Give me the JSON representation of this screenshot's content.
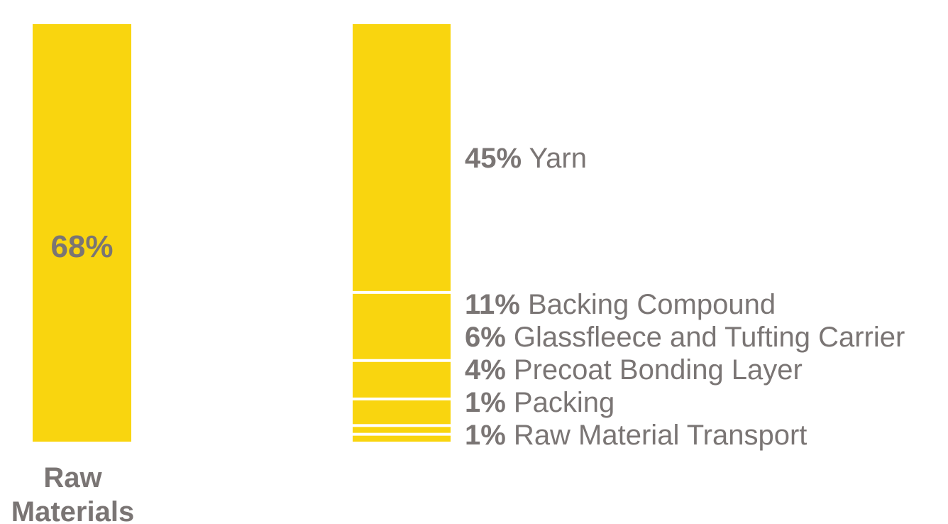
{
  "chart_data": {
    "type": "bar",
    "total": {
      "label": "Raw Materials",
      "label_lines": [
        "Raw",
        "Materials"
      ],
      "value": 68,
      "value_label": "68%"
    },
    "breakdown": [
      {
        "value": 45,
        "value_label": "45%",
        "name": "Yarn"
      },
      {
        "value": 11,
        "value_label": "11%",
        "name": "Backing Compound"
      },
      {
        "value": 6,
        "value_label": "6%",
        "name": "Glassfleece and Tufting Carrier"
      },
      {
        "value": 4,
        "value_label": "4%",
        "name": "Precoat Bonding Layer"
      },
      {
        "value": 1,
        "value_label": "1%",
        "name": "Packing"
      },
      {
        "value": 1,
        "value_label": "1%",
        "name": "Raw Material Transport"
      }
    ],
    "colors": {
      "bar": "#F9D50F",
      "text": "#7A7574",
      "separator": "#FFFFFF"
    }
  }
}
